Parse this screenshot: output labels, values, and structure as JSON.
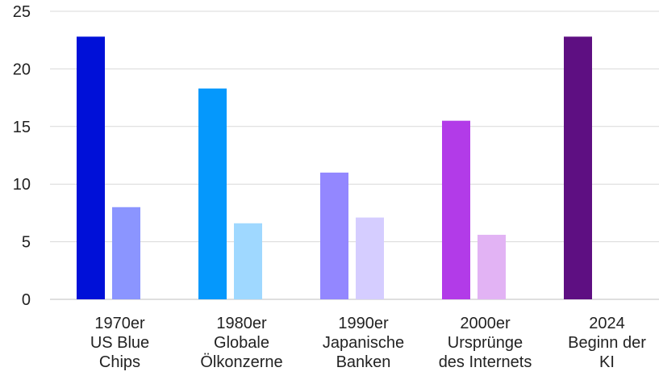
{
  "chart_data": {
    "type": "bar",
    "title": "",
    "xlabel": "",
    "ylabel": "",
    "ylim": [
      0,
      25
    ],
    "yticks": [
      "0",
      "5",
      "10",
      "15",
      "20",
      "25"
    ],
    "grid": true,
    "categories": [
      [
        "1970er",
        "US Blue",
        "Chips"
      ],
      [
        "1980er",
        "Globale",
        "Ölkonzerne"
      ],
      [
        "1990er",
        "Japanische",
        "Banken"
      ],
      [
        "2000er",
        "Ursprünge",
        "des Internets"
      ],
      [
        "2024",
        "Beginn der",
        "KI"
      ]
    ],
    "series": [
      {
        "values": [
          22.8,
          18.3,
          11.0,
          15.5,
          22.8
        ],
        "colors": [
          "#0010d8",
          "#0598fc",
          "#9387ff",
          "#b23be8",
          "#5e0f82"
        ]
      },
      {
        "values": [
          8.0,
          6.6,
          7.1,
          5.6,
          null
        ],
        "colors": [
          "#8b95ff",
          "#9fd8ff",
          "#d5cdff",
          "#e2b3f4",
          "#ffffff"
        ]
      }
    ]
  }
}
